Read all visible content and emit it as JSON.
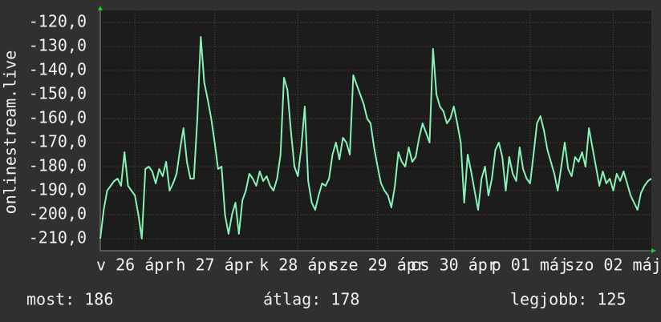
{
  "chart_data": {
    "type": "line",
    "y_label": "onlinestream.live",
    "ylim": [
      -215,
      -115
    ],
    "yticks": [
      {
        "value": -120,
        "label": "-120,0"
      },
      {
        "value": -130,
        "label": "-130,0"
      },
      {
        "value": -140,
        "label": "-140,0"
      },
      {
        "value": -150,
        "label": "-150,0"
      },
      {
        "value": -160,
        "label": "-160,0"
      },
      {
        "value": -170,
        "label": "-170,0"
      },
      {
        "value": -180,
        "label": "-180,0"
      },
      {
        "value": -190,
        "label": "-190,0"
      },
      {
        "value": -200,
        "label": "-200,0"
      },
      {
        "value": -210,
        "label": "-210,0"
      }
    ],
    "xlim": [
      0,
      159
    ],
    "xticks": [
      {
        "value": 10,
        "label": "v 26 ápr"
      },
      {
        "value": 33,
        "label": "h 27 ápr"
      },
      {
        "value": 57,
        "label": "k 28 ápr"
      },
      {
        "value": 80,
        "label": "sze 29 ápr"
      },
      {
        "value": 102,
        "label": "cs 30 ápr"
      },
      {
        "value": 124,
        "label": "p 01 máj"
      },
      {
        "value": 148,
        "label": "szo 02 máj"
      }
    ],
    "grid": true,
    "series": [
      {
        "color": "#86f2b4",
        "values": [
          -210,
          -198,
          -190,
          -188,
          -186,
          -185,
          -188,
          -174,
          -188,
          -190,
          -192,
          -200,
          -210,
          -181,
          -180,
          -182,
          -187,
          -181,
          -184,
          -178,
          -190,
          -187,
          -183,
          -173,
          -164,
          -178,
          -185,
          -185,
          -160,
          -126,
          -145,
          -152,
          -160,
          -170,
          -181,
          -180,
          -200,
          -208,
          -200,
          -195,
          -208,
          -194,
          -190,
          -183,
          -185,
          -188,
          -182,
          -186,
          -184,
          -188,
          -190,
          -185,
          -175,
          -143,
          -148,
          -165,
          -180,
          -184,
          -172,
          -155,
          -186,
          -195,
          -198,
          -192,
          -187,
          -188,
          -185,
          -175,
          -170,
          -177,
          -168,
          -170,
          -175,
          -142,
          -146,
          -150,
          -154,
          -160,
          -162,
          -172,
          -180,
          -187,
          -190,
          -192,
          -197,
          -188,
          -174,
          -178,
          -180,
          -172,
          -178,
          -176,
          -168,
          -162,
          -166,
          -170,
          -131,
          -150,
          -155,
          -157,
          -162,
          -160,
          -155,
          -162,
          -170,
          -195,
          -175,
          -182,
          -190,
          -198,
          -185,
          -180,
          -192,
          -185,
          -173,
          -170,
          -176,
          -190,
          -176,
          -183,
          -186,
          -172,
          -181,
          -185,
          -187,
          -175,
          -162,
          -159,
          -165,
          -173,
          -178,
          -183,
          -190,
          -180,
          -170,
          -181,
          -184,
          -176,
          -178,
          -174,
          -180,
          -164,
          -172,
          -180,
          -188,
          -182,
          -187,
          -185,
          -190,
          -183,
          -186,
          -182,
          -187,
          -192,
          -195,
          -198,
          -191,
          -188,
          -186,
          -185
        ]
      }
    ],
    "footer": {
      "current": "most: 186",
      "average": "átlag: 178",
      "best": "legjobb: 125"
    }
  }
}
